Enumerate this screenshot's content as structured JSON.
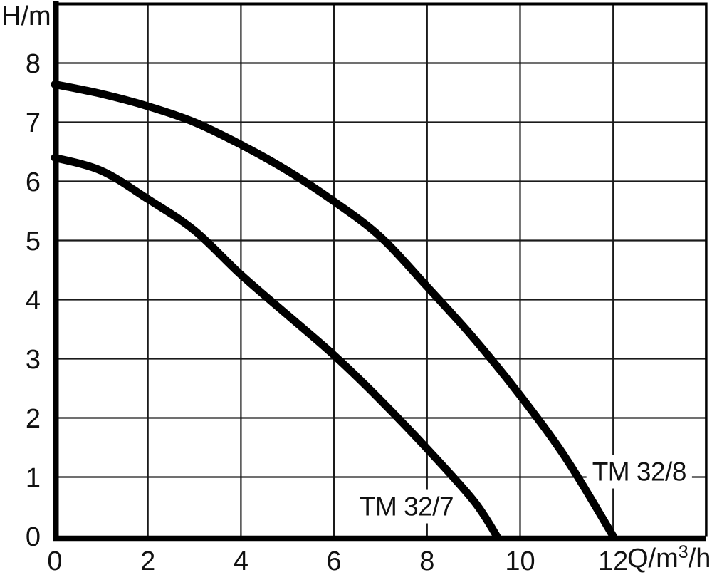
{
  "chart_data": {
    "type": "line",
    "title": "",
    "ylabel": "H/m",
    "xlabel": "Q/m³/h",
    "xlabel_parts": {
      "base": "Q/m",
      "sup": "3",
      "rest": "/h"
    },
    "x_ticks": [
      0,
      2,
      4,
      6,
      8,
      10,
      12
    ],
    "y_ticks": [
      0,
      1,
      2,
      3,
      4,
      5,
      6,
      7,
      8
    ],
    "xlim": [
      0,
      14
    ],
    "ylim": [
      0,
      9
    ],
    "grid": {
      "x_step": 2,
      "y_step": 1,
      "visible": true
    },
    "legend_position": "labels-on-plot",
    "series": [
      {
        "name": "TM 32/8",
        "points": [
          [
            0,
            7.64
          ],
          [
            1,
            7.48
          ],
          [
            2,
            7.27
          ],
          [
            3,
            7.0
          ],
          [
            4,
            6.62
          ],
          [
            5,
            6.18
          ],
          [
            6,
            5.66
          ],
          [
            7,
            5.06
          ],
          [
            8,
            4.22
          ],
          [
            9,
            3.35
          ],
          [
            10,
            2.38
          ],
          [
            11,
            1.3
          ],
          [
            12,
            0
          ]
        ],
        "label_at": [
          12.56,
          1.1
        ]
      },
      {
        "name": "TM 32/7",
        "points": [
          [
            0,
            6.4
          ],
          [
            1,
            6.18
          ],
          [
            2,
            5.7
          ],
          [
            3,
            5.17
          ],
          [
            4,
            4.42
          ],
          [
            5,
            3.74
          ],
          [
            6,
            3.06
          ],
          [
            7,
            2.3
          ],
          [
            8,
            1.48
          ],
          [
            9,
            0.6
          ],
          [
            9.5,
            0
          ]
        ],
        "label_at": [
          7.56,
          0.51
        ]
      }
    ],
    "colors": {
      "curve": "#000000",
      "grid": "#1a1a1a",
      "axis": "#000000",
      "border": "#000000",
      "text": "#111111",
      "background": "#ffffff"
    }
  }
}
